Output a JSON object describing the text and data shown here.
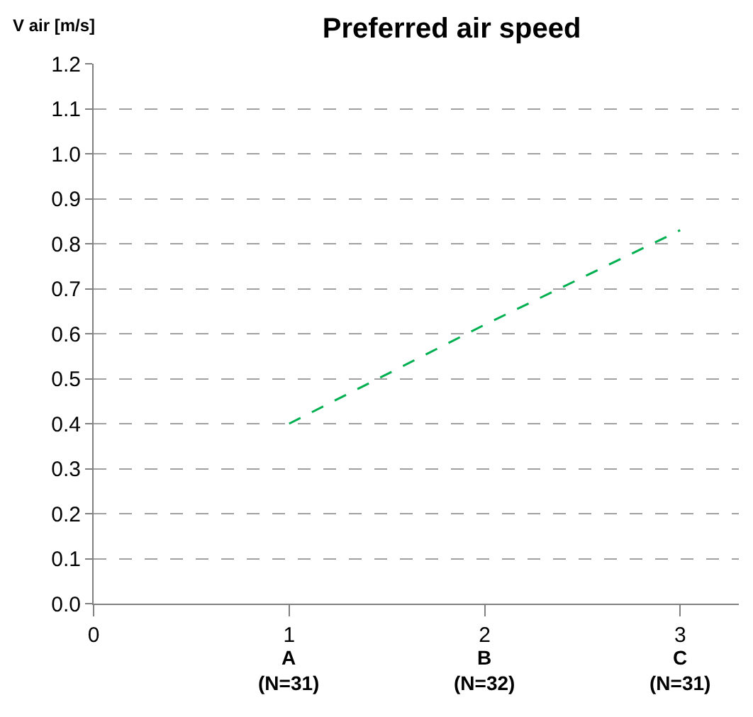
{
  "chart_data": {
    "type": "line",
    "title": "Preferred air speed",
    "ylabel": "V air [m/s]",
    "x": [
      1,
      2,
      3
    ],
    "series": [
      {
        "color": "#00b050",
        "values": [
          0.4,
          0.62,
          0.83
        ],
        "line_style": "dashed"
      }
    ],
    "xlim": [
      0,
      3.3
    ],
    "xticks": [
      0,
      1,
      2,
      3
    ],
    "annotations": [
      "A\n(N=31)",
      "B\n(N=32)",
      "C\n(N=31)"
    ],
    "ylim": [
      0,
      1.2
    ],
    "yticks": [
      {
        "value": 0,
        "label": "0.0"
      },
      0.1,
      0.2,
      0.3,
      0.4,
      0.5,
      0.6,
      0.7,
      0.8,
      0.9,
      {
        "value": 1,
        "label": "1.0"
      },
      1.1,
      1.2
    ],
    "grid": "y",
    "marker": "none",
    "legend": false
  }
}
